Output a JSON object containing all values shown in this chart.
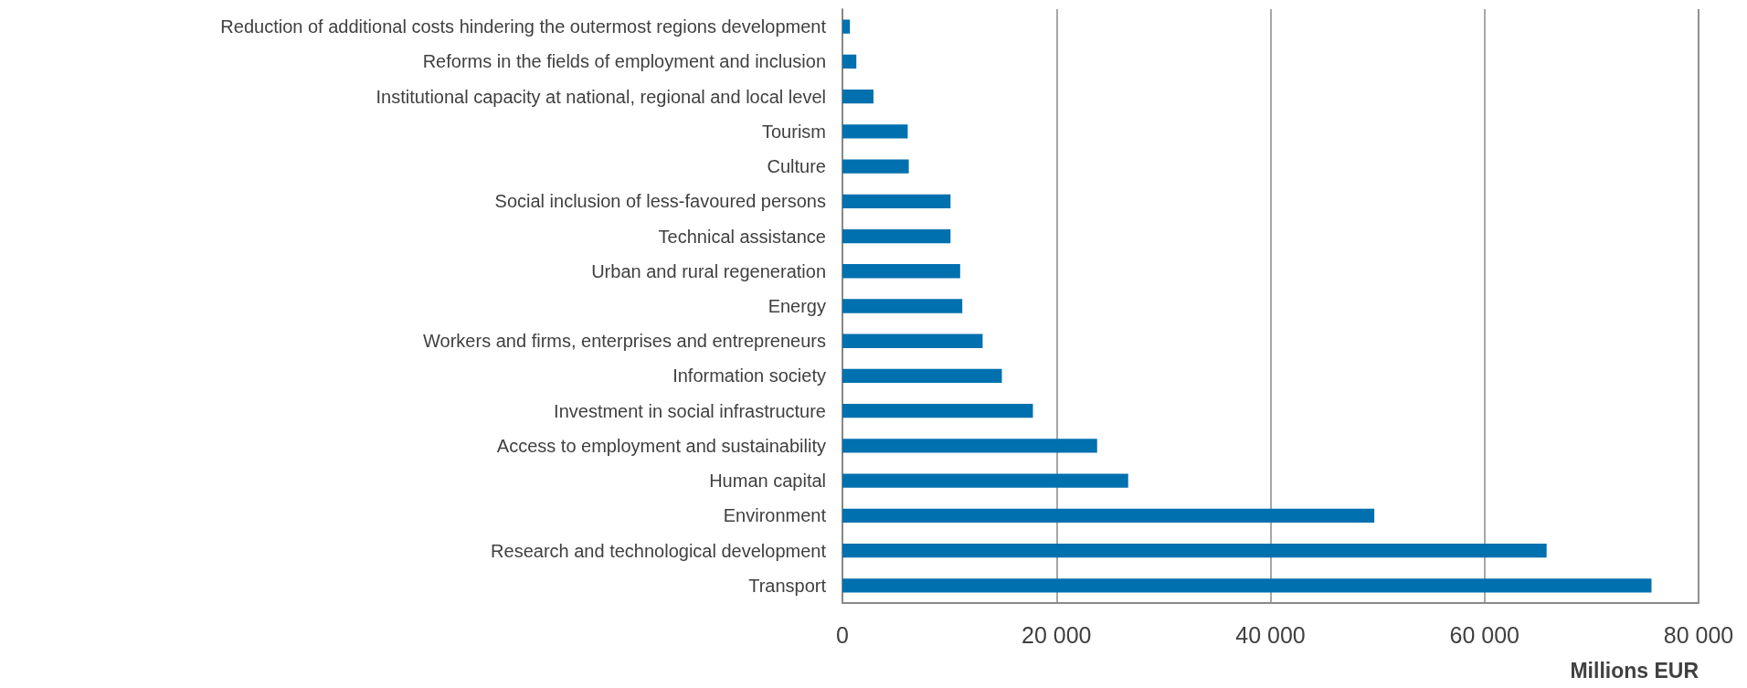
{
  "chart_data": {
    "type": "bar",
    "orientation": "horizontal",
    "xlabel": "Millions EUR",
    "categories": [
      "Reduction of additional costs hindering the outermost regions development",
      "Reforms in the fields of employment and inclusion",
      "Institutional capacity at national, regional and local level",
      "Tourism",
      "Culture",
      "Social inclusion of less-favoured persons",
      "Technical assistance",
      "Urban and rural regeneration",
      "Energy",
      "Workers and firms, enterprises and entrepreneurs",
      "Information society",
      "Investment in social infrastructure",
      "Access to employment and sustainability",
      "Human capital",
      "Environment",
      "Research and technological development",
      "Transport"
    ],
    "values": [
      700,
      1300,
      2900,
      6100,
      6200,
      10100,
      10100,
      11000,
      11200,
      13100,
      14900,
      17800,
      23800,
      26700,
      49700,
      65800,
      75600
    ],
    "color": "#0070ae",
    "xlim": [
      0,
      80000
    ],
    "xticks": [
      {
        "value": 0,
        "label": "0"
      },
      {
        "value": 20000,
        "label": "20 000"
      },
      {
        "value": 40000,
        "label": "40 000"
      },
      {
        "value": 60000,
        "label": "60 000"
      },
      {
        "value": 80000,
        "label": "80 000"
      }
    ],
    "grid": "x"
  }
}
